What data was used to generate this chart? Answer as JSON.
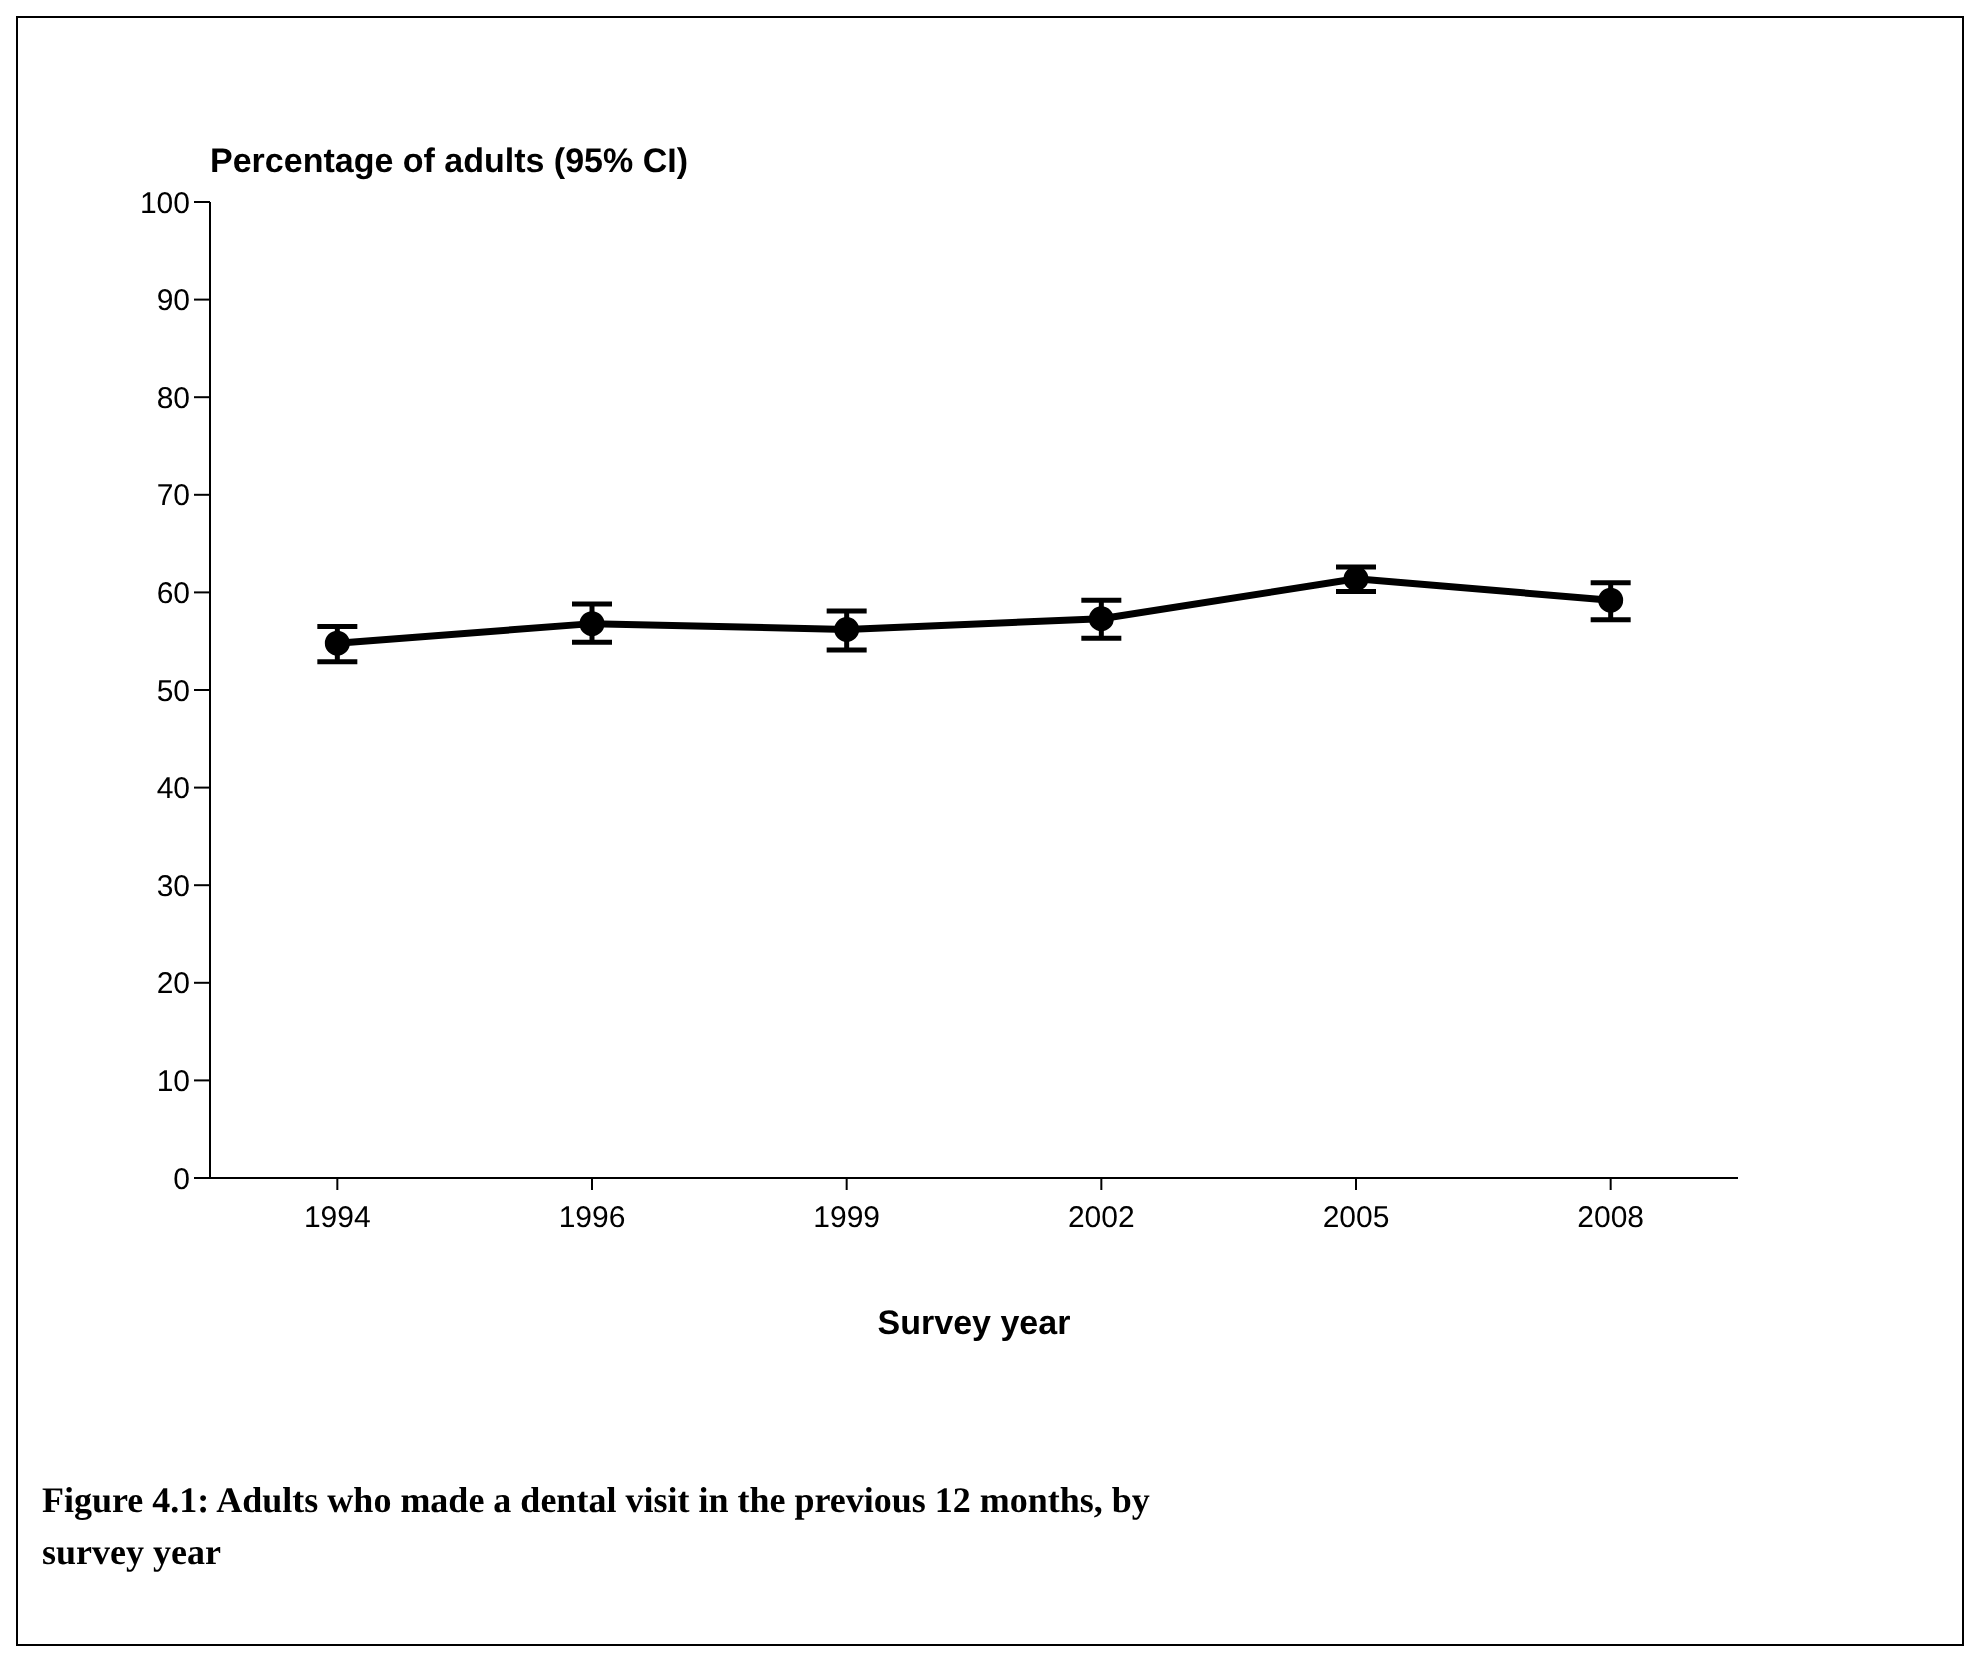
{
  "chart_data": {
    "type": "line",
    "title": "Percentage of adults (95% CI)",
    "xlabel": "Survey year",
    "categories": [
      "1994",
      "1996",
      "1999",
      "2002",
      "2005",
      "2008"
    ],
    "series": [
      {
        "color": "#000000",
        "values": [
          54.8,
          56.8,
          56.2,
          57.3,
          61.4,
          59.2
        ],
        "errors": [
          [
            52.9,
            56.5
          ],
          [
            54.9,
            58.8
          ],
          [
            54.1,
            58.1
          ],
          [
            55.3,
            59.2
          ],
          [
            60.1,
            62.6
          ],
          [
            57.2,
            61
          ]
        ]
      }
    ],
    "ylim": [
      0,
      100
    ],
    "yticks": [
      0,
      10,
      20,
      30,
      40,
      50,
      60,
      70,
      80,
      90,
      100
    ],
    "grid": false,
    "marker": "circle",
    "line_style": "solid",
    "annotations": [
      "Figure 4.1: Adults who made a dental visit in the previous 12 months, by survey year"
    ]
  }
}
